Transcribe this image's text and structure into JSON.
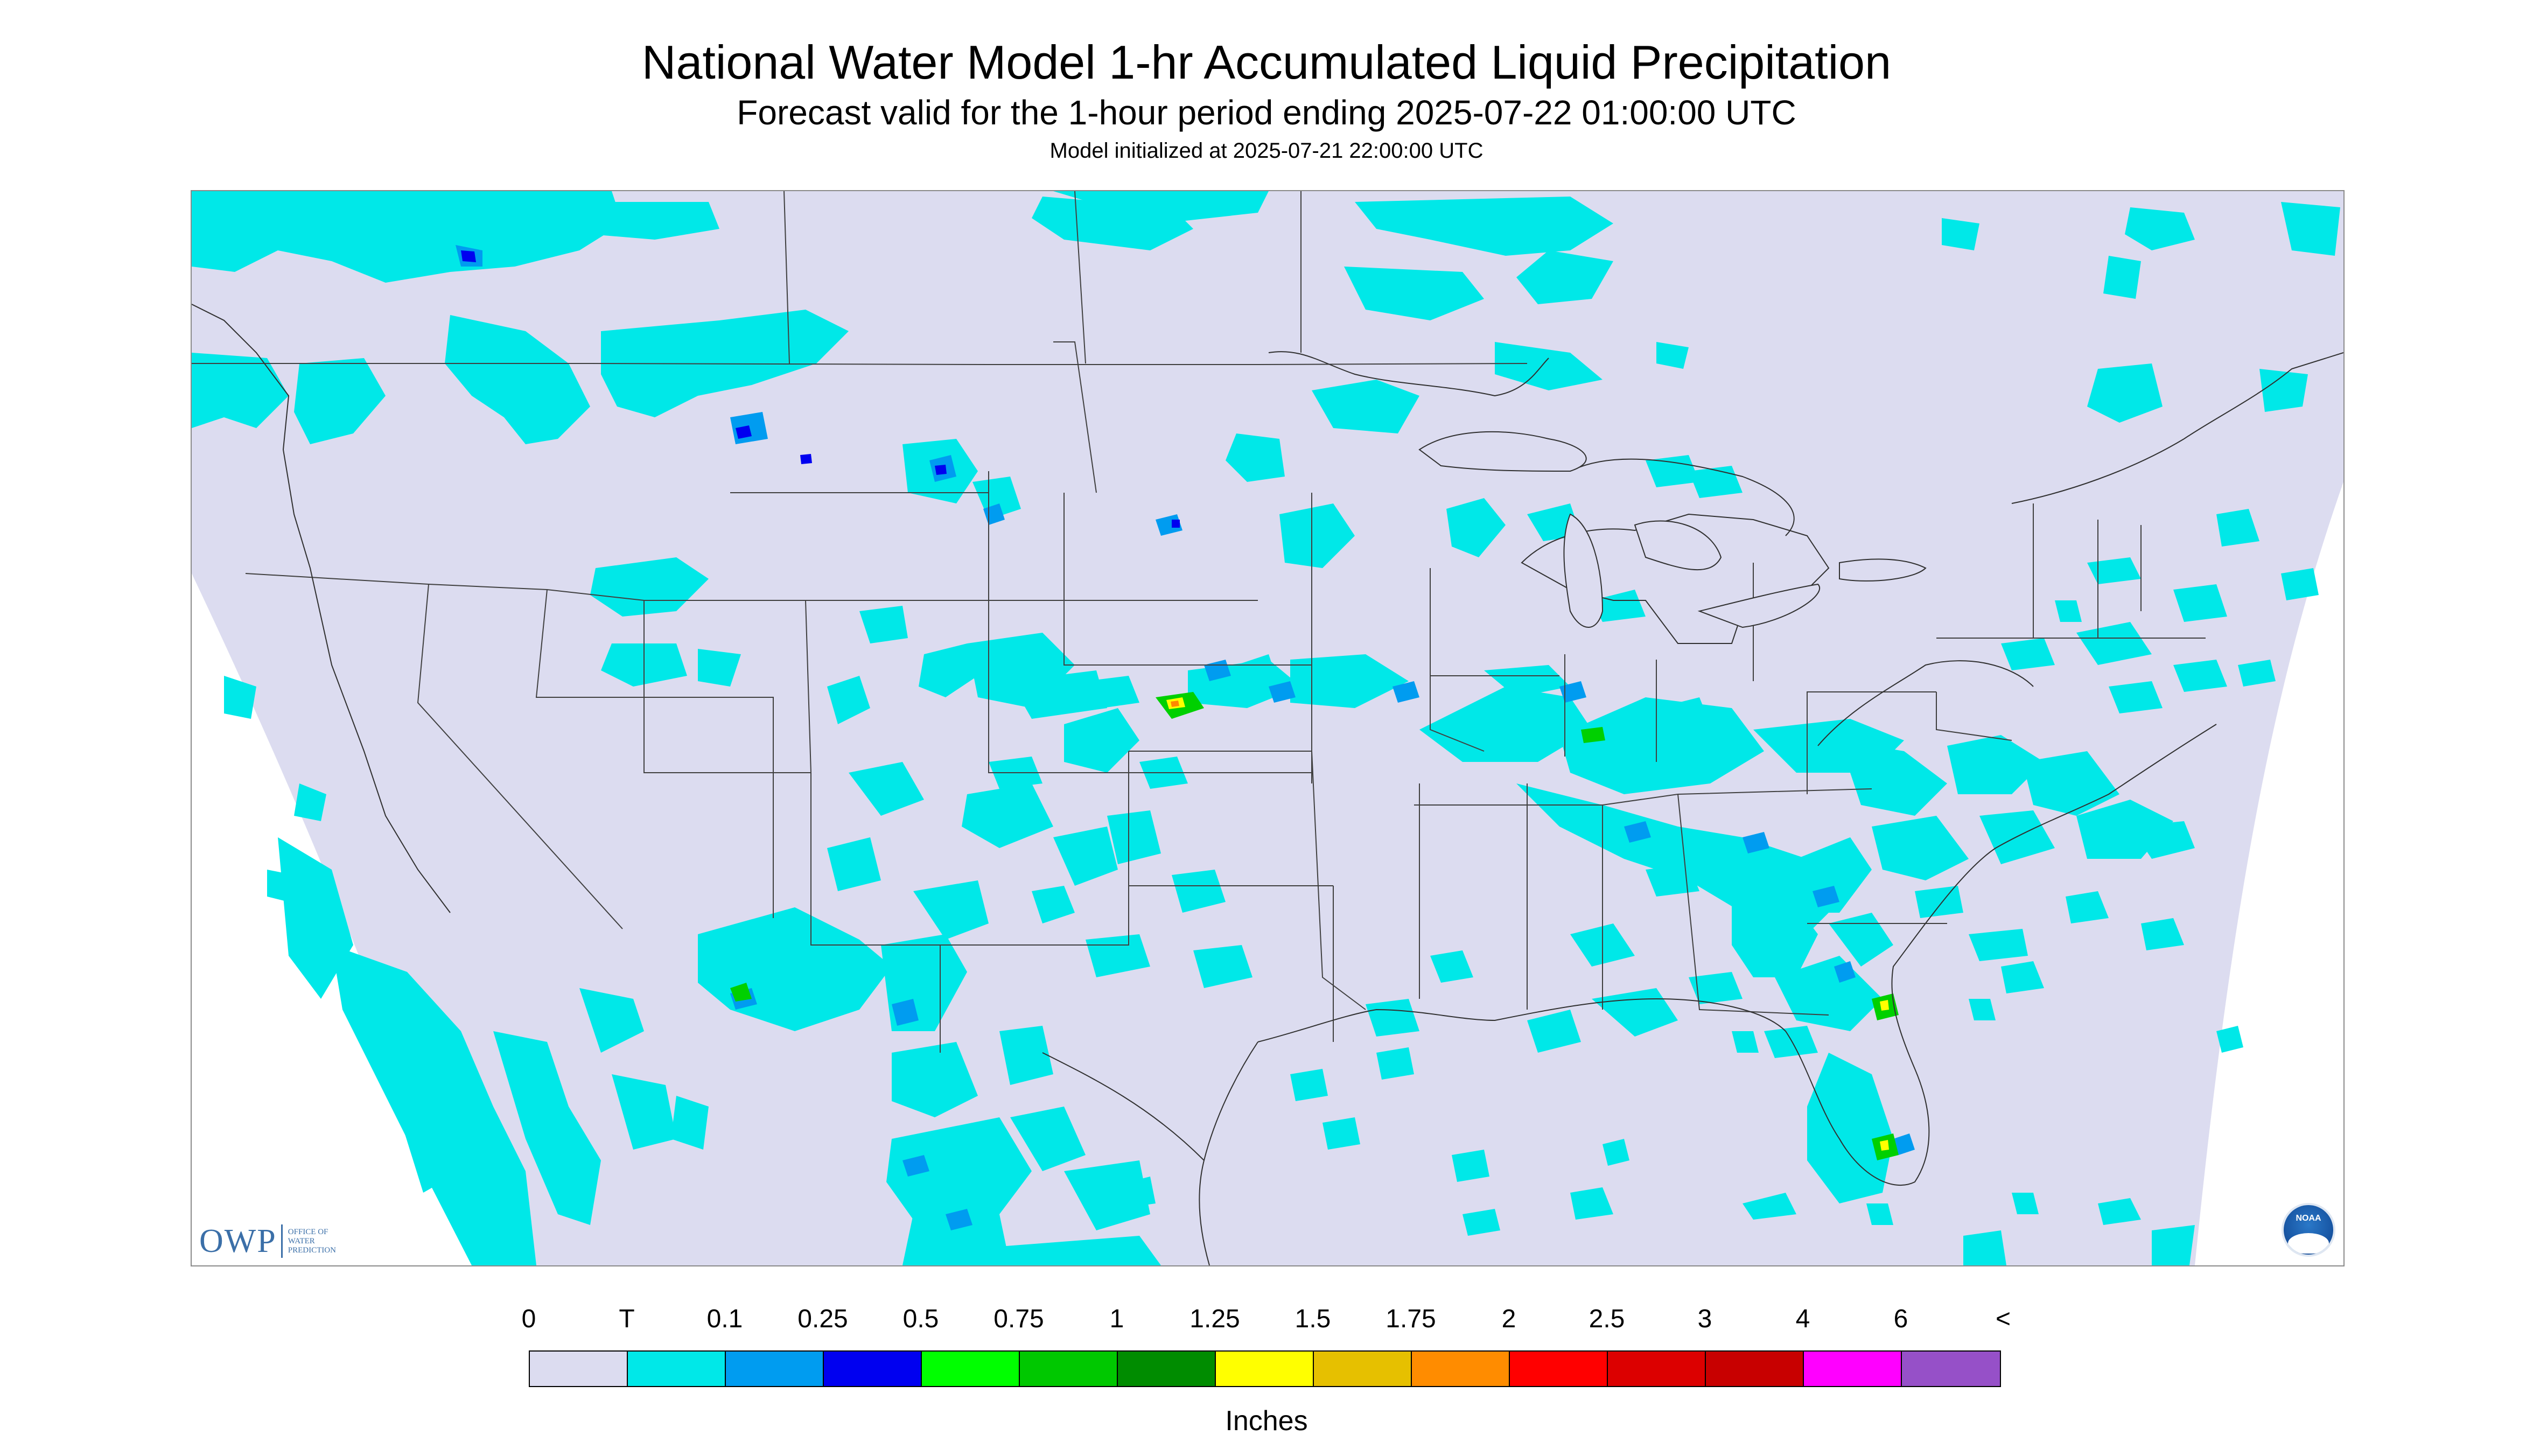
{
  "header": {
    "title": "National Water Model 1-hr Accumulated Liquid Precipitation",
    "subtitle": "Forecast valid for the 1-hour period ending 2025-07-22 01:00:00 UTC",
    "init": "Model initialized at 2025-07-21 22:00:00 UTC"
  },
  "map": {
    "region": "Continental United States",
    "background_color": "#dcdcf0",
    "precip_light_color": "#00e8e8",
    "precip_mid_color": "#009cf0",
    "precip_heavy_color": "#0000f0",
    "precip_green_color": "#00d000",
    "precip_yellow_color": "#ffff00",
    "precip_orange_color": "#ff8800"
  },
  "logos": {
    "owp_mark": "OWP",
    "owp_text": [
      "OFFICE OF",
      "WATER",
      "PREDICTION"
    ],
    "noaa_text": "NOAA"
  },
  "legend": {
    "labels": [
      "0",
      "T",
      "0.1",
      "0.25",
      "0.5",
      "0.75",
      "1",
      "1.25",
      "1.5",
      "1.75",
      "2",
      "2.5",
      "3",
      "4",
      "6",
      "<"
    ],
    "colors": [
      "#dcdcf0",
      "#00e8e8",
      "#009cf0",
      "#0000f0",
      "#00ff00",
      "#00c800",
      "#008c00",
      "#ffff00",
      "#e6c000",
      "#ff8c00",
      "#ff0000",
      "#dc0000",
      "#c80000",
      "#ff00ff",
      "#9650c8"
    ],
    "units": "Inches"
  }
}
